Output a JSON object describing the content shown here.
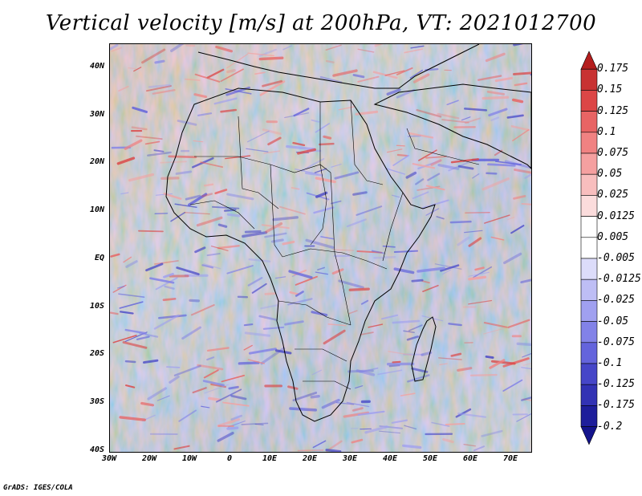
{
  "title": "Vertical velocity [m/s] at 200hPa, VT: 2021012700",
  "credit": "GrADS: IGES/COLA",
  "map": {
    "lon_range": [
      -30,
      75
    ],
    "lat_range": [
      -40,
      45
    ],
    "lat_ticks": [
      "40N",
      "30N",
      "20N",
      "10N",
      "EQ",
      "10S",
      "20S",
      "30S",
      "40S"
    ],
    "lat_values": [
      40,
      30,
      20,
      10,
      0,
      -10,
      -20,
      -30,
      -40
    ],
    "lon_ticks": [
      "30W",
      "20W",
      "10W",
      "0",
      "10E",
      "20E",
      "30E",
      "40E",
      "50E",
      "60E",
      "70E"
    ],
    "lon_values": [
      -30,
      -20,
      -10,
      0,
      10,
      20,
      30,
      40,
      50,
      60,
      70
    ]
  },
  "colorbar": {
    "labels": [
      "0.175",
      "0.15",
      "0.125",
      "0.1",
      "0.075",
      "0.05",
      "0.025",
      "0.0125",
      "0.005",
      "-0.005",
      "-0.0125",
      "-0.025",
      "-0.05",
      "-0.075",
      "-0.1",
      "-0.125",
      "-0.175",
      "-0.2"
    ],
    "colors": [
      "#b41e1e",
      "#c83232",
      "#dc4646",
      "#e86464",
      "#f08282",
      "#f5a0a0",
      "#f8bebe",
      "#fbdcdc",
      "#ffffff",
      "#ffffff",
      "#dcdcfa",
      "#bebef5",
      "#a0a0f0",
      "#8282e8",
      "#6464dc",
      "#4646c8",
      "#3232b4",
      "#1e1e9b",
      "#14148c"
    ]
  }
}
